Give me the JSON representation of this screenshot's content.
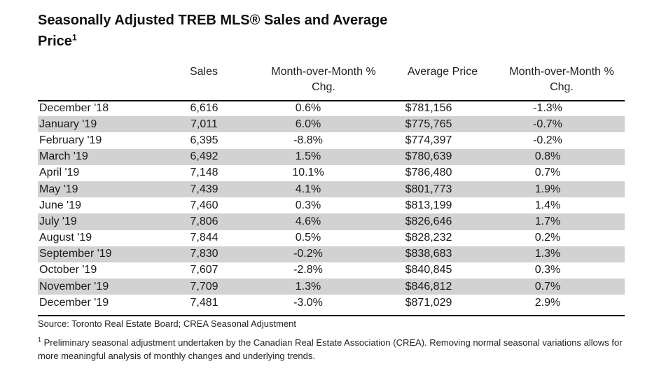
{
  "title": {
    "text": "Seasonally Adjusted TREB MLS® Sales and Average Price",
    "superscript": "1"
  },
  "headers": {
    "sales": "Sales",
    "sales_mom": "Month-over-Month % Chg.",
    "avg_price": "Average Price",
    "price_mom": "Month-over-Month % Chg."
  },
  "rows": [
    {
      "month": "December '18",
      "sales": "6,616",
      "sales_mom": "0.6%",
      "avg_price": "$781,156",
      "price_mom": "-1.3%"
    },
    {
      "month": "January '19",
      "sales": "7,011",
      "sales_mom": "6.0%",
      "avg_price": "$775,765",
      "price_mom": "-0.7%"
    },
    {
      "month": "February '19",
      "sales": "6,395",
      "sales_mom": "-8.8%",
      "avg_price": "$774,397",
      "price_mom": "-0.2%"
    },
    {
      "month": "March '19",
      "sales": "6,492",
      "sales_mom": "1.5%",
      "avg_price": "$780,639",
      "price_mom": "0.8%"
    },
    {
      "month": "April '19",
      "sales": "7,148",
      "sales_mom": "10.1%",
      "avg_price": "$786,480",
      "price_mom": "0.7%"
    },
    {
      "month": "May '19",
      "sales": "7,439",
      "sales_mom": "4.1%",
      "avg_price": "$801,773",
      "price_mom": "1.9%"
    },
    {
      "month": "June '19",
      "sales": "7,460",
      "sales_mom": "0.3%",
      "avg_price": "$813,199",
      "price_mom": "1.4%"
    },
    {
      "month": "July '19",
      "sales": "7,806",
      "sales_mom": "4.6%",
      "avg_price": "$826,646",
      "price_mom": "1.7%"
    },
    {
      "month": "August '19",
      "sales": "7,844",
      "sales_mom": "0.5%",
      "avg_price": "$828,232",
      "price_mom": "0.2%"
    },
    {
      "month": "September '19",
      "sales": "7,830",
      "sales_mom": "-0.2%",
      "avg_price": "$838,683",
      "price_mom": "1.3%"
    },
    {
      "month": "October '19",
      "sales": "7,607",
      "sales_mom": "-2.8%",
      "avg_price": "$840,845",
      "price_mom": "0.3%"
    },
    {
      "month": "November '19",
      "sales": "7,709",
      "sales_mom": "1.3%",
      "avg_price": "$846,812",
      "price_mom": "0.7%"
    },
    {
      "month": "December '19",
      "sales": "7,481",
      "sales_mom": "-3.0%",
      "avg_price": "$871,029",
      "price_mom": "2.9%"
    }
  ],
  "source": "Source: Toronto Real Estate Board; CREA Seasonal Adjustment",
  "footnote": {
    "marker": "1",
    "text": " Preliminary seasonal adjustment undertaken by the Canadian Real Estate Association (CREA). Removing normal seasonal variations allows for more meaningful analysis of monthly changes and underlying trends."
  },
  "colors": {
    "row_stripe": "#d2d2d2",
    "rule": "#111111"
  }
}
